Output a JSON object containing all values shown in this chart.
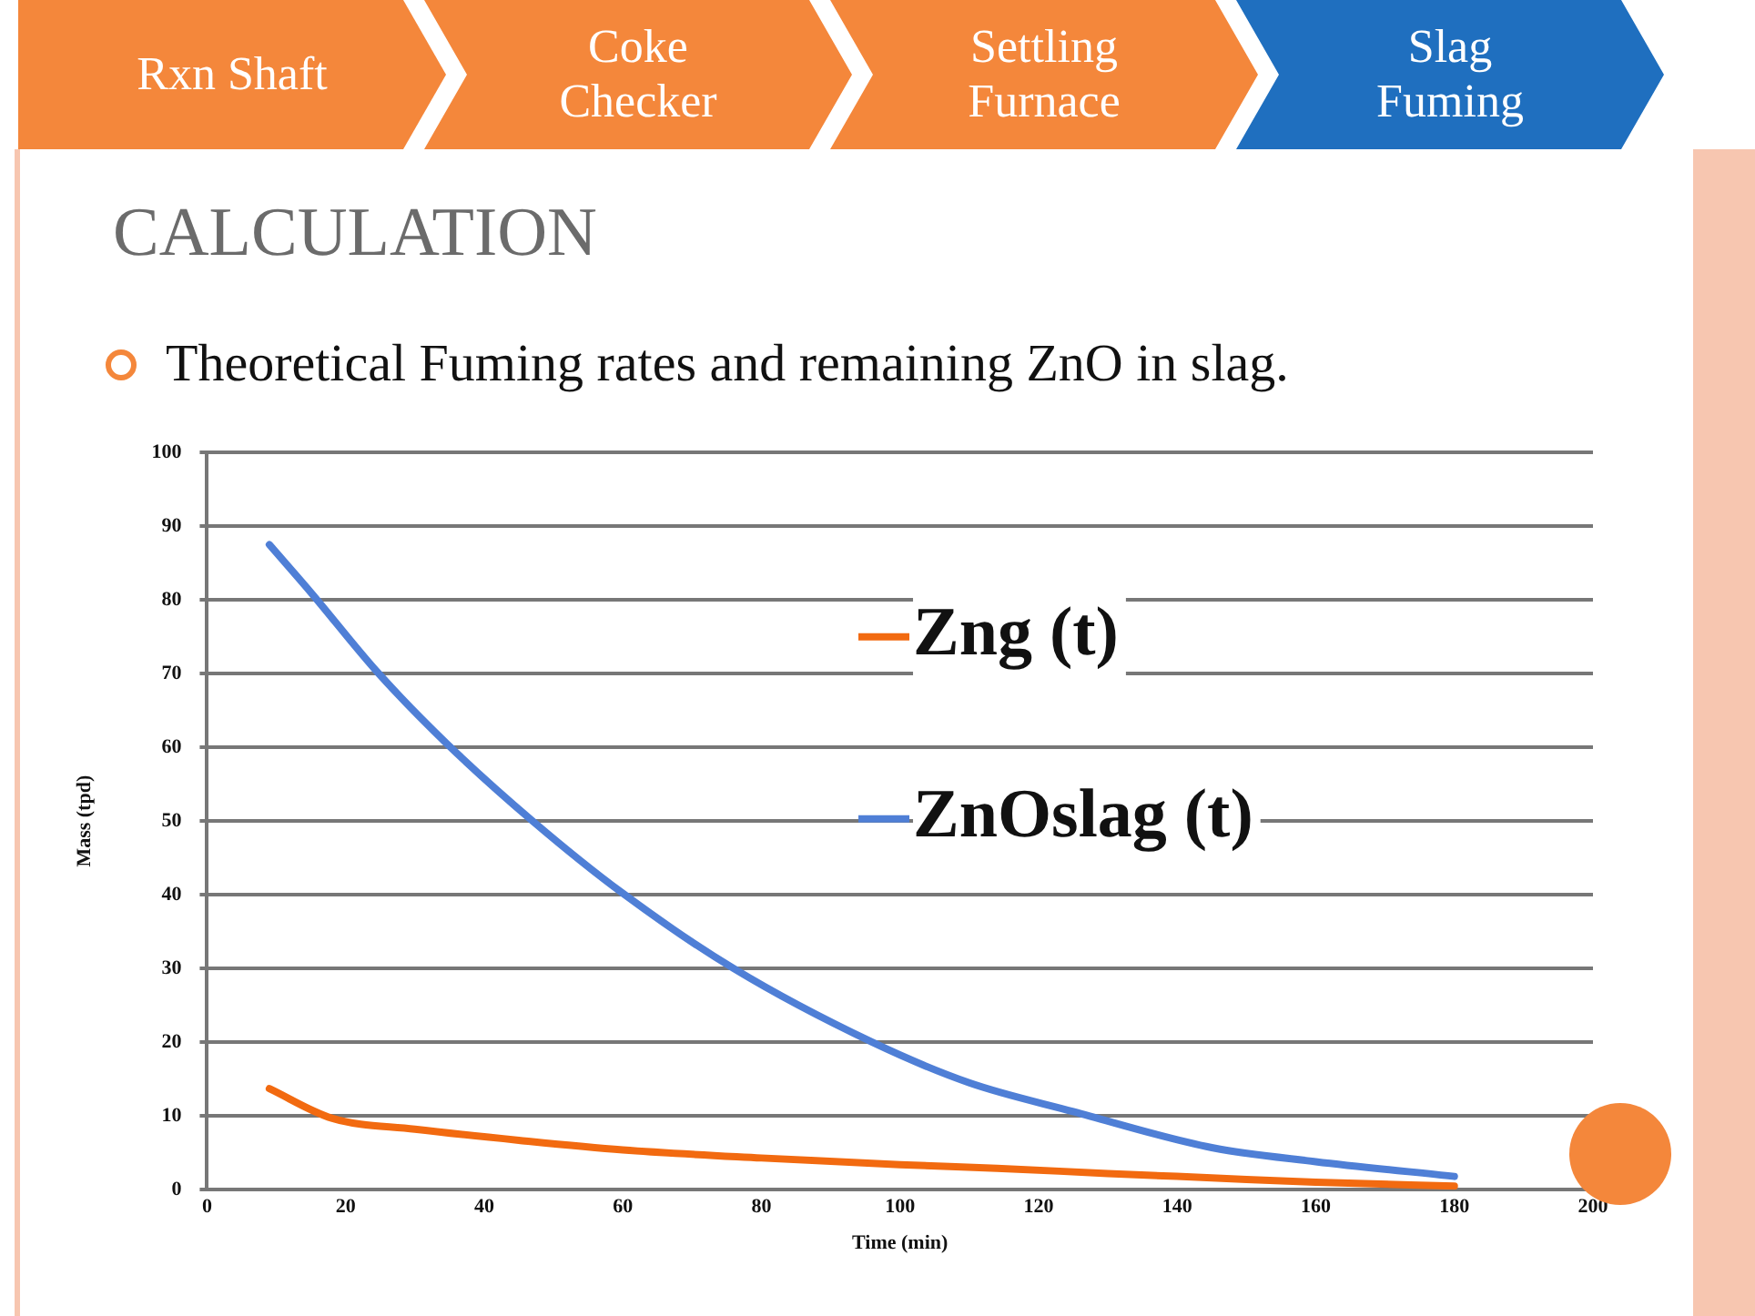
{
  "chart_data": {
    "type": "line",
    "title": "CALCULATION",
    "subtitle": "Theoretical Fuming rates and remaining ZnO in slag.",
    "annotations": [
      "Rxn Shaft",
      "Coke Checker",
      "Settling Furnace",
      "Slag Fuming"
    ],
    "xlabel": "Time (min)",
    "ylabel": "Mass (tpd)",
    "series": [
      {
        "name": "Zng (t)",
        "color": "#f26a10",
        "x": [
          9,
          18,
          30,
          45,
          60,
          80,
          100,
          114,
          130,
          145,
          160,
          180
        ],
        "values": [
          13.7,
          9.7,
          8.2,
          6.7,
          5.4,
          4.3,
          3.4,
          2.9,
          2.2,
          1.6,
          1.0,
          0.5
        ]
      },
      {
        "name": "ZnOslag (t)",
        "color": "#4f7fd6",
        "x": [
          9,
          15,
          24.5,
          34.5,
          47,
          60,
          76,
          96,
          110,
          125,
          145,
          160,
          180
        ],
        "values": [
          87.5,
          81,
          70.3,
          60.6,
          50,
          40.2,
          30,
          20,
          14.5,
          10.6,
          5.7,
          3.8,
          1.8
        ]
      }
    ],
    "xlim": [
      0,
      200
    ],
    "xticks": [
      0,
      20,
      40,
      60,
      80,
      100,
      120,
      140,
      160,
      180,
      200
    ],
    "ylim": [
      0,
      100
    ],
    "yticks": [
      0,
      10,
      20,
      30,
      40,
      50,
      60,
      70,
      80,
      90,
      100
    ],
    "grid": "y",
    "legend": "right",
    "marker": "none",
    "line_style": "solid"
  }
}
